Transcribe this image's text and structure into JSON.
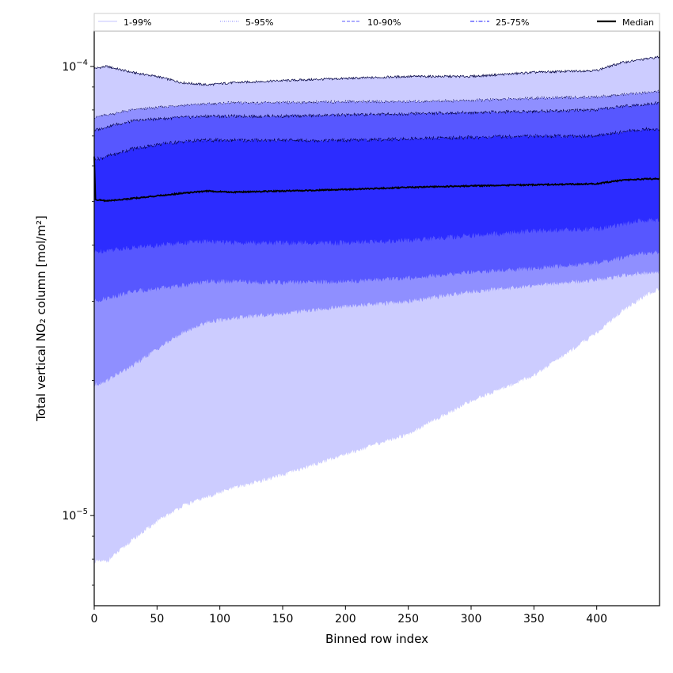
{
  "chart_data": {
    "type": "area",
    "xlabel": "Binned row index",
    "ylabel": "Total vertical NO₂ column [mol/m²]",
    "xlim": [
      0,
      450
    ],
    "ylim": [
      6.3e-06,
      0.00012
    ],
    "yscale": "log",
    "xticks": [
      0,
      50,
      100,
      150,
      200,
      250,
      300,
      350,
      400
    ],
    "xtick_labels": [
      "0",
      "50",
      "100",
      "150",
      "200",
      "250",
      "300",
      "350",
      "400"
    ],
    "yticks": [
      1e-05,
      0.0001
    ],
    "ytick_labels": [
      {
        "base": "10",
        "exp": "−5"
      },
      {
        "base": "10",
        "exp": "−4"
      }
    ],
    "legend": {
      "placement": "top",
      "entries": [
        {
          "label": "1-99%",
          "color": "#cfcfff",
          "style": "solid"
        },
        {
          "label": "5-95%",
          "color": "#9c9cff",
          "style": "dotted"
        },
        {
          "label": "10-90%",
          "color": "#7a7aff",
          "style": "dashed"
        },
        {
          "label": "25-75%",
          "color": "#4848ff",
          "style": "dashdot"
        },
        {
          "label": "Median",
          "color": "#000000",
          "style": "solid"
        }
      ]
    },
    "bands": [
      {
        "name": "1-99%",
        "color": "#ccccff",
        "x": [
          0,
          10,
          30,
          50,
          70,
          90,
          110,
          150,
          200,
          250,
          300,
          350,
          400,
          420,
          440,
          450
        ],
        "lower": [
          7.9e-06,
          7.9e-06,
          8.8e-06,
          9.7e-06,
          1.05e-05,
          1.1e-05,
          1.15e-05,
          1.23e-05,
          1.37e-05,
          1.52e-05,
          1.8e-05,
          2.05e-05,
          2.55e-05,
          2.85e-05,
          3.1e-05,
          3.2e-05
        ],
        "upper": [
          9.9e-05,
          0.0001,
          9.7e-05,
          9.5e-05,
          9.2e-05,
          9.1e-05,
          9.2e-05,
          9.3e-05,
          9.4e-05,
          9.5e-05,
          9.5e-05,
          9.7e-05,
          9.8e-05,
          0.000102,
          0.000104,
          0.000105
        ]
      },
      {
        "name": "5-95%",
        "color": "#8f8fff",
        "x": [
          0,
          10,
          30,
          50,
          70,
          90,
          110,
          150,
          200,
          250,
          300,
          350,
          400,
          420,
          440,
          450
        ],
        "lower": [
          1.95e-05,
          2e-05,
          2.15e-05,
          2.35e-05,
          2.55e-05,
          2.7e-05,
          2.75e-05,
          2.82e-05,
          2.92e-05,
          3e-05,
          3.15e-05,
          3.25e-05,
          3.35e-05,
          3.42e-05,
          3.47e-05,
          3.48e-05
        ],
        "upper": [
          7.7e-05,
          7.8e-05,
          8e-05,
          8.1e-05,
          8.2e-05,
          8.25e-05,
          8.3e-05,
          8.3e-05,
          8.35e-05,
          8.35e-05,
          8.4e-05,
          8.5e-05,
          8.55e-05,
          8.65e-05,
          8.75e-05,
          8.8e-05
        ]
      },
      {
        "name": "10-90%",
        "color": "#5757ff",
        "x": [
          0,
          10,
          30,
          50,
          70,
          90,
          110,
          150,
          200,
          250,
          300,
          350,
          400,
          420,
          440,
          450
        ],
        "lower": [
          3e-05,
          3.05e-05,
          3.15e-05,
          3.2e-05,
          3.25e-05,
          3.32e-05,
          3.32e-05,
          3.3e-05,
          3.32e-05,
          3.38e-05,
          3.48e-05,
          3.55e-05,
          3.65e-05,
          3.75e-05,
          3.85e-05,
          3.85e-05
        ],
        "upper": [
          7.2e-05,
          7.35e-05,
          7.55e-05,
          7.65e-05,
          7.7e-05,
          7.75e-05,
          7.75e-05,
          7.75e-05,
          7.8e-05,
          7.85e-05,
          7.9e-05,
          7.95e-05,
          8e-05,
          8.15e-05,
          8.25e-05,
          8.3e-05
        ]
      },
      {
        "name": "25-75%",
        "color": "#2c2cff",
        "x": [
          0,
          10,
          30,
          50,
          70,
          90,
          110,
          150,
          200,
          250,
          300,
          350,
          400,
          420,
          440,
          450
        ],
        "lower": [
          3.85e-05,
          3.9e-05,
          3.95e-05,
          4e-05,
          4.05e-05,
          4.08e-05,
          4.05e-05,
          4.05e-05,
          4.05e-05,
          4.1e-05,
          4.2e-05,
          4.3e-05,
          4.35e-05,
          4.45e-05,
          4.55e-05,
          4.55e-05
        ],
        "upper": [
          6.2e-05,
          6.3e-05,
          6.55e-05,
          6.7e-05,
          6.8e-05,
          6.85e-05,
          6.85e-05,
          6.85e-05,
          6.85e-05,
          6.9e-05,
          6.95e-05,
          7e-05,
          7e-05,
          7.15e-05,
          7.25e-05,
          7.25e-05
        ]
      }
    ],
    "median": {
      "name": "Median",
      "x": [
        0,
        1,
        10,
        30,
        50,
        70,
        90,
        110,
        150,
        200,
        250,
        300,
        350,
        400,
        420,
        440,
        450
      ],
      "values": [
        6.3e-05,
        5.05e-05,
        5.02e-05,
        5.08e-05,
        5.15e-05,
        5.22e-05,
        5.28e-05,
        5.25e-05,
        5.28e-05,
        5.32e-05,
        5.38e-05,
        5.42e-05,
        5.45e-05,
        5.48e-05,
        5.58e-05,
        5.62e-05,
        5.62e-05
      ]
    }
  }
}
